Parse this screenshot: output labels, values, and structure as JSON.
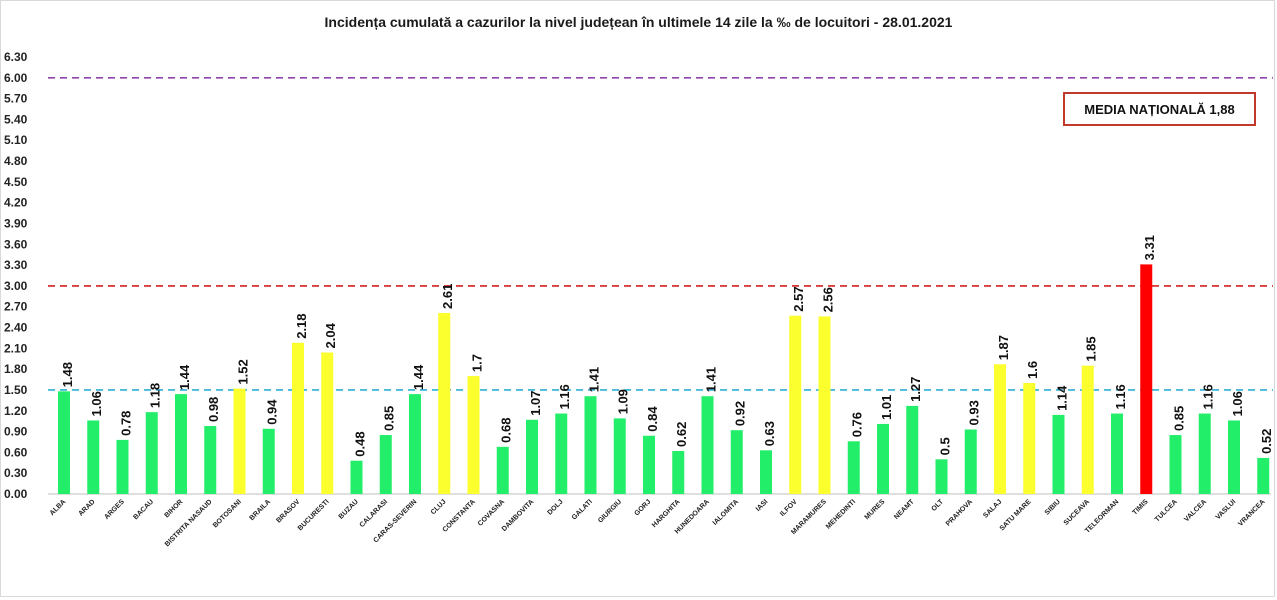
{
  "chart_data": {
    "type": "bar",
    "title": "Incidența cumulată a cazurilor la nivel județean în ultimele 14 zile la ‰ de locuitori - 28.01.2021",
    "xlabel": "",
    "ylabel": "",
    "ylim": [
      0,
      6.3
    ],
    "yticks": [
      "0.00",
      "0.30",
      "0.60",
      "0.90",
      "1.20",
      "1.50",
      "1.80",
      "2.10",
      "2.40",
      "2.70",
      "3.00",
      "3.30",
      "3.60",
      "3.90",
      "4.20",
      "4.50",
      "4.80",
      "5.10",
      "5.40",
      "5.70",
      "6.00",
      "6.30"
    ],
    "grid": false,
    "categories": [
      "ALBA",
      "ARAD",
      "ARGES",
      "BACAU",
      "BIHOR",
      "BISTRITA NASAUD",
      "BOTOSANI",
      "BRAILA",
      "BRASOV",
      "BUCURESTI",
      "BUZAU",
      "CALARASI",
      "CARAS-SEVERIN",
      "CLUJ",
      "CONSTANTA",
      "COVASNA",
      "DAMBOVITA",
      "DOLJ",
      "GALATI",
      "GIURGIU",
      "GORJ",
      "HARGHITA",
      "HUNEDOARA",
      "IALOMITA",
      "IASI",
      "ILFOV",
      "MARAMURES",
      "MEHEDINTI",
      "MURES",
      "NEAMT",
      "OLT",
      "PRAHOVA",
      "SALAJ",
      "SATU MARE",
      "SIBIU",
      "SUCEAVA",
      "TELEORMAN",
      "TIMIS",
      "TULCEA",
      "VALCEA",
      "VASLUI",
      "VRANCEA"
    ],
    "values": [
      1.48,
      1.06,
      0.78,
      1.18,
      1.44,
      0.98,
      1.52,
      0.94,
      2.18,
      2.04,
      0.48,
      0.85,
      1.44,
      2.61,
      1.7,
      0.68,
      1.07,
      1.16,
      1.41,
      1.09,
      0.84,
      0.62,
      1.41,
      0.92,
      0.63,
      2.57,
      2.56,
      0.76,
      1.01,
      1.27,
      0.5,
      0.93,
      1.87,
      1.6,
      1.14,
      1.85,
      1.16,
      3.31,
      0.85,
      1.16,
      1.06,
      0.52
    ],
    "value_labels": [
      "1.48",
      "1.06",
      "0.78",
      "1.18",
      "1.44",
      "0.98",
      "1.52",
      "0.94",
      "2.18",
      "2.04",
      "0.48",
      "0.85",
      "1.44",
      "2.61",
      "1.7",
      "0.68",
      "1.07",
      "1.16",
      "1.41",
      "1.09",
      "0.84",
      "0.62",
      "1.41",
      "0.92",
      "0.63",
      "2.57",
      "2.56",
      "0.76",
      "1.01",
      "1.27",
      "0.5",
      "0.93",
      "1.87",
      "1.6",
      "1.14",
      "1.85",
      "1.16",
      "3.31",
      "0.85",
      "1.16",
      "1.06",
      "0.52"
    ],
    "colors": {
      "low": "#22ee6a",
      "medium": "#fbff2e",
      "high": "#ff0000"
    },
    "bar_color_levels": [
      "low",
      "low",
      "low",
      "low",
      "low",
      "low",
      "medium",
      "low",
      "medium",
      "medium",
      "low",
      "low",
      "low",
      "medium",
      "medium",
      "low",
      "low",
      "low",
      "low",
      "low",
      "low",
      "low",
      "low",
      "low",
      "low",
      "medium",
      "medium",
      "low",
      "low",
      "low",
      "low",
      "low",
      "medium",
      "medium",
      "low",
      "medium",
      "low",
      "high",
      "low",
      "low",
      "low",
      "low"
    ],
    "reference_lines": [
      {
        "value": 1.5,
        "color": "#2bb0d6",
        "style": "dashed"
      },
      {
        "value": 3.0,
        "color": "#d42020",
        "style": "dashed"
      },
      {
        "value": 6.0,
        "color": "#8e44ad",
        "style": "dashed"
      }
    ],
    "annotation": "MEDIA NAȚIONALĂ  1,88"
  }
}
